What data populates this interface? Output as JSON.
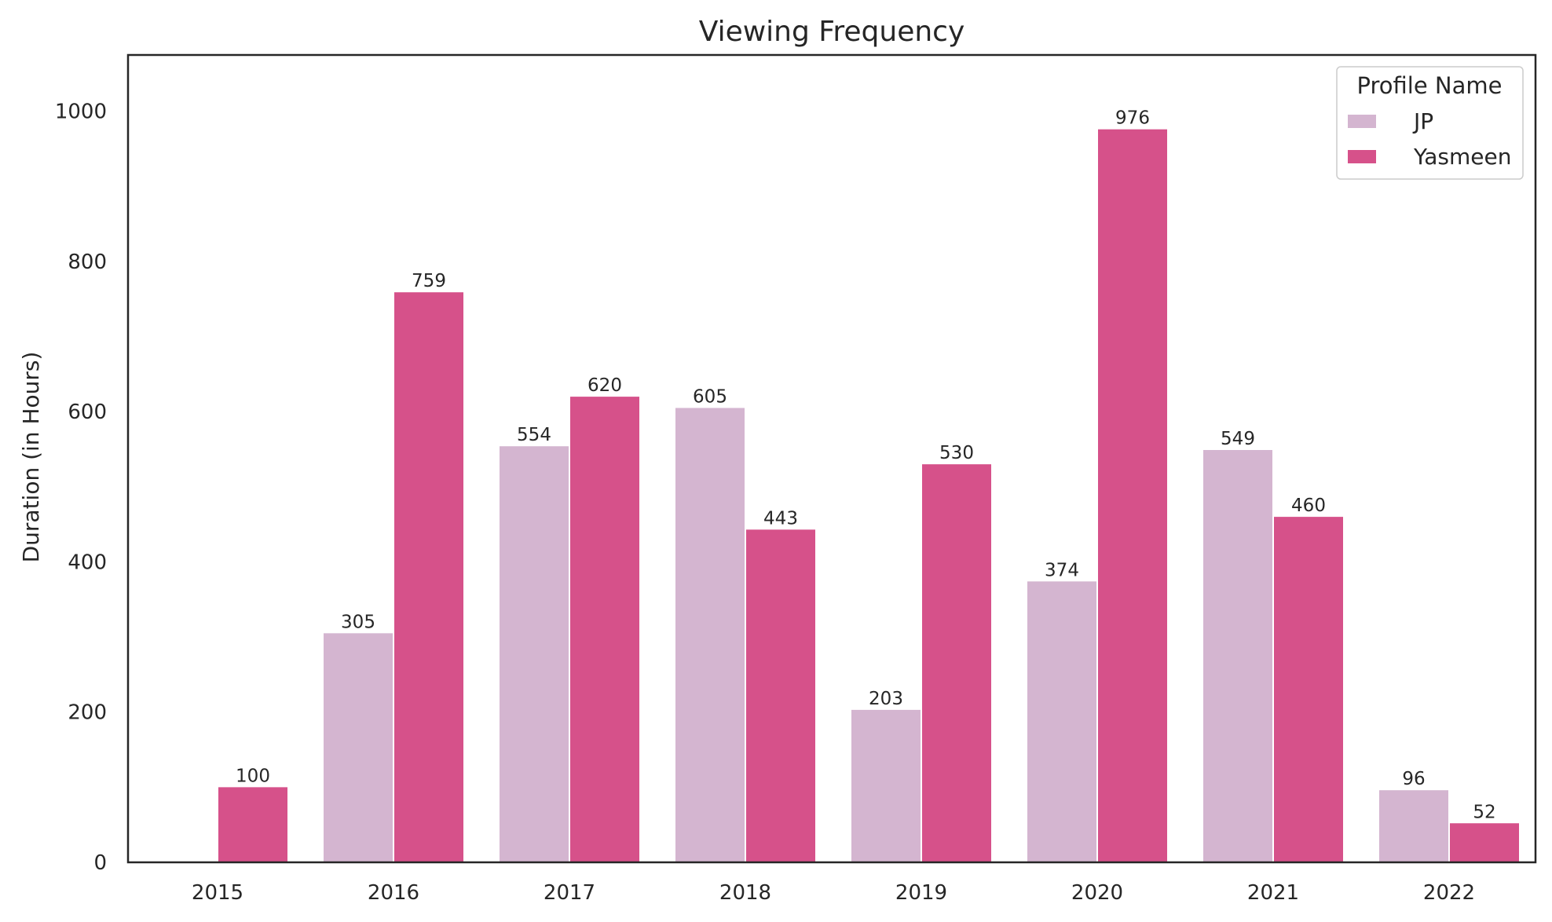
{
  "chart_data": {
    "type": "bar",
    "title": "Viewing Frequency",
    "xlabel": "",
    "ylabel": "Duration (in Hours)",
    "ylim": [
      0,
      1075
    ],
    "yticks": [
      0,
      200,
      400,
      600,
      800,
      1000
    ],
    "grid": false,
    "categories": [
      "2015",
      "2016",
      "2017",
      "2018",
      "2019",
      "2020",
      "2021",
      "2022"
    ],
    "series": [
      {
        "name": "JP",
        "color": "#d4b5d0",
        "values": [
          null,
          305,
          554,
          605,
          203,
          374,
          549,
          96
        ]
      },
      {
        "name": "Yasmeen",
        "color": "#d6518a",
        "values": [
          100,
          759,
          620,
          443,
          530,
          976,
          460,
          52
        ]
      }
    ],
    "legend": {
      "title": "Profile Name",
      "position": "top-right"
    }
  }
}
